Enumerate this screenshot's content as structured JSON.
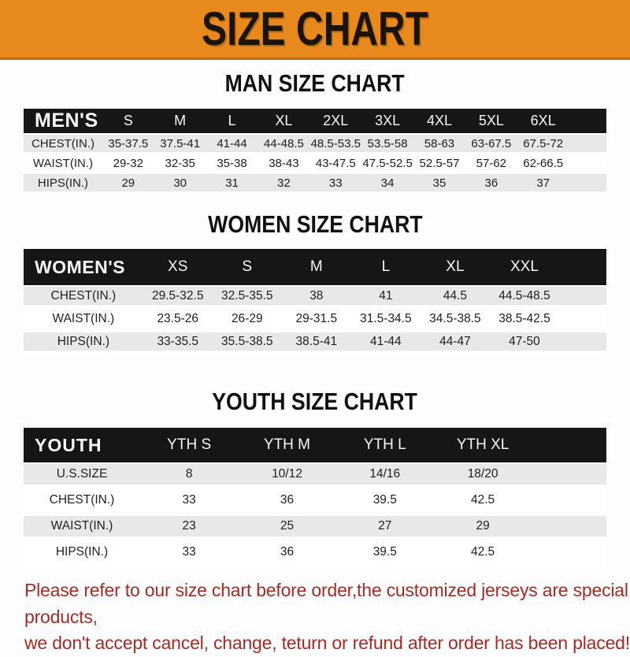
{
  "banner": {
    "title": "SIZE CHART"
  },
  "colors": {
    "banner_bg": "#E8891D",
    "banner_border": "#C4690F",
    "header_bar_bg": "#161616",
    "row_stripe": "#E8E8E8",
    "footer_text": "#A12D26"
  },
  "sections": [
    {
      "heading": "MAN SIZE CHART",
      "corner": "MEN'S",
      "columns": [
        "S",
        "M",
        "L",
        "XL",
        "2XL",
        "3XL",
        "4XL",
        "5XL",
        "6XL"
      ],
      "rows": [
        {
          "label": "CHEST(IN.)",
          "values": [
            "35-37.5",
            "37.5-41",
            "41-44",
            "44-48.5",
            "48.5-53.5",
            "53.5-58",
            "58-63",
            "63-67.5",
            "67.5-72"
          ]
        },
        {
          "label": "WAIST(IN.)",
          "values": [
            "29-32",
            "32-35",
            "35-38",
            "38-43",
            "43-47.5",
            "47.5-52.5",
            "52.5-57",
            "57-62",
            "62-66.5"
          ]
        },
        {
          "label": "HIPS(IN.)",
          "values": [
            "29",
            "30",
            "31",
            "32",
            "33",
            "34",
            "35",
            "36",
            "37"
          ]
        }
      ]
    },
    {
      "heading": "WOMEN SIZE CHART",
      "corner": "WOMEN'S",
      "columns": [
        "XS",
        "S",
        "M",
        "L",
        "XL",
        "XXL"
      ],
      "rows": [
        {
          "label": "CHEST(IN.)",
          "values": [
            "29.5-32.5",
            "32.5-35.5",
            "38",
            "41",
            "44.5",
            "44.5-48.5"
          ]
        },
        {
          "label": "WAIST(IN.)",
          "values": [
            "23.5-26",
            "26-29",
            "29-31.5",
            "31.5-34.5",
            "34.5-38.5",
            "38.5-42.5"
          ]
        },
        {
          "label": "HIPS(IN.)",
          "values": [
            "33-35.5",
            "35.5-38.5",
            "38.5-41",
            "41-44",
            "44-47",
            "47-50"
          ]
        }
      ]
    },
    {
      "heading": "YOUTH SIZE CHART",
      "corner": "YOUTH",
      "columns": [
        "YTH S",
        "YTH M",
        "YTH L",
        "YTH XL"
      ],
      "rows": [
        {
          "label": "U.S.SIZE",
          "values": [
            "8",
            "10/12",
            "14/16",
            "18/20"
          ]
        },
        {
          "label": "CHEST(IN.)",
          "values": [
            "33",
            "36",
            "39.5",
            "42.5"
          ]
        },
        {
          "label": "WAIST(IN.)",
          "values": [
            "23",
            "25",
            "27",
            "29"
          ]
        },
        {
          "label": "HIPS(IN.)",
          "values": [
            "33",
            "36",
            "39.5",
            "42.5"
          ]
        }
      ]
    }
  ],
  "footer": {
    "lines": [
      "Please refer to our size chart before order,the customized jerseys are special products,",
      "we don't accept cancel, change, teturn or refund after order has been placed!"
    ]
  }
}
